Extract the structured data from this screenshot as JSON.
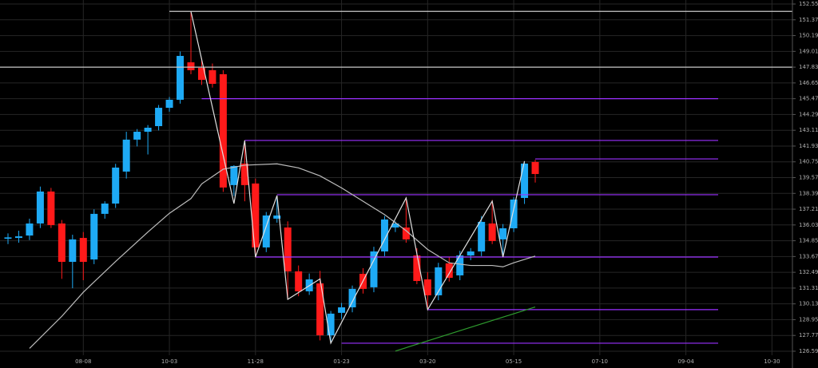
{
  "chart_data": {
    "type": "candlestick",
    "categories": [
      null,
      null,
      null,
      null,
      null,
      null,
      null,
      "08-08",
      null,
      null,
      null,
      null,
      null,
      null,
      null,
      "10-03",
      null,
      null,
      null,
      null,
      null,
      null,
      null,
      "11-28",
      null,
      null,
      null,
      null,
      null,
      null,
      null,
      "01-23",
      null,
      null,
      null,
      null,
      null,
      null,
      null,
      "03-20",
      null,
      null,
      null,
      null,
      null,
      null,
      null,
      "05-15",
      null,
      null,
      null,
      null,
      null,
      null,
      null,
      "07-10",
      null,
      null,
      null,
      null,
      null,
      null,
      null,
      "09-04",
      null,
      null,
      null,
      null,
      null,
      null,
      null,
      "10-30",
      null
    ],
    "open": [
      135.0,
      135.06,
      135.24,
      136.14,
      138.53,
      136.14,
      133.27,
      135.06,
      133.45,
      136.86,
      137.63,
      140.02,
      142.41,
      143.0,
      143.42,
      144.79,
      145.39,
      148.19,
      147.78,
      147.6,
      147.3,
      139.01,
      140.62,
      139.13,
      134.35,
      136.5,
      135.84,
      132.56,
      131.07,
      131.66,
      127.78,
      129.46,
      129.87,
      132.38,
      131.37,
      134.05,
      135.84,
      135.84,
      133.75,
      131.96,
      130.77,
      133.16,
      132.26,
      133.75,
      134.05,
      136.14,
      134.95,
      135.78,
      138.05,
      140.74,
      null,
      null,
      null,
      null,
      null,
      null,
      null,
      null,
      null,
      null,
      null,
      null,
      null,
      null,
      null,
      null,
      null,
      null,
      null,
      null,
      null,
      null,
      null
    ],
    "high": [
      135.4,
      135.6,
      136.5,
      138.9,
      138.8,
      136.4,
      135.3,
      135.5,
      137.2,
      137.8,
      140.6,
      143.0,
      143.2,
      143.5,
      145.0,
      145.6,
      149.0,
      152.0,
      148.5,
      148.1,
      147.6,
      140.5,
      142.35,
      139.5,
      137.0,
      138.2,
      136.3,
      133.0,
      132.4,
      132.6,
      129.6,
      130.2,
      131.5,
      132.8,
      134.4,
      136.7,
      136.3,
      138.0,
      134.3,
      132.5,
      133.2,
      133.6,
      134.1,
      134.3,
      136.7,
      137.9,
      136.1,
      138.1,
      140.8,
      140.9,
      null,
      null,
      null,
      null,
      null,
      null,
      null,
      null,
      null,
      null,
      null,
      null,
      null,
      null,
      null,
      null,
      null,
      null,
      null,
      null,
      null,
      null,
      null
    ],
    "low": [
      134.6,
      134.7,
      134.9,
      135.8,
      135.8,
      132.0,
      131.3,
      131.9,
      133.1,
      136.5,
      137.3,
      139.5,
      141.9,
      141.3,
      143.1,
      144.5,
      145.1,
      147.3,
      146.5,
      146.3,
      138.5,
      138.2,
      137.8,
      133.6,
      134.0,
      136.2,
      130.5,
      130.7,
      130.8,
      127.4,
      127.19,
      129.0,
      129.5,
      130.9,
      131.0,
      133.7,
      135.5,
      134.7,
      131.6,
      129.7,
      130.4,
      131.8,
      131.9,
      133.4,
      133.7,
      134.6,
      133.6,
      135.5,
      137.6,
      139.2,
      null,
      null,
      null,
      null,
      null,
      null,
      null,
      null,
      null,
      null,
      null,
      null,
      null,
      null,
      null,
      null,
      null,
      null,
      null,
      null,
      null,
      null,
      null
    ],
    "close": [
      135.1,
      135.18,
      136.14,
      138.53,
      136.02,
      133.27,
      134.95,
      133.27,
      136.86,
      137.63,
      140.32,
      142.41,
      143.0,
      143.3,
      144.79,
      145.39,
      148.67,
      147.6,
      146.88,
      146.58,
      138.83,
      140.44,
      139.01,
      134.35,
      136.74,
      136.74,
      132.56,
      131.07,
      131.96,
      127.78,
      129.4,
      129.87,
      131.25,
      131.25,
      134.05,
      136.44,
      136.14,
      134.95,
      131.84,
      130.77,
      132.86,
      132.08,
      133.75,
      134.05,
      136.26,
      134.83,
      135.78,
      137.93,
      140.62,
      139.84,
      null,
      null,
      null,
      null,
      null,
      null,
      null,
      null,
      null,
      null,
      null,
      null,
      null,
      null,
      null,
      null,
      null,
      null,
      null,
      null,
      null,
      null,
      null
    ],
    "up_color": "#1eaaf5",
    "down_color": "#ff1a1a",
    "ylim": [
      126.29,
      152.85
    ],
    "yticks": [
      152.55,
      151.37,
      150.19,
      149.01,
      147.83,
      146.65,
      145.47,
      144.29,
      143.11,
      141.93,
      140.75,
      139.57,
      138.39,
      137.21,
      136.03,
      134.85,
      133.67,
      132.49,
      131.31,
      130.13,
      128.95,
      127.77,
      126.59
    ],
    "grid": true,
    "overlays": [
      {
        "color": "#c8c8c8",
        "x": [
          15,
          73
        ],
        "values": [
          152.0,
          152.0
        ]
      },
      {
        "color": "#c8c8c8",
        "x": [
          -1,
          73
        ],
        "values": [
          147.83,
          147.83
        ]
      },
      {
        "color": "#9b30ff",
        "x": [
          18,
          66
        ],
        "values": [
          145.47,
          145.47
        ]
      },
      {
        "color": "#9b30ff",
        "x": [
          22,
          66
        ],
        "values": [
          142.35,
          142.35
        ]
      },
      {
        "color": "#9b30ff",
        "x": [
          49,
          66
        ],
        "values": [
          140.97,
          140.97
        ]
      },
      {
        "color": "#9b30ff",
        "x": [
          25,
          66
        ],
        "values": [
          138.29,
          138.29
        ]
      },
      {
        "color": "#9b30ff",
        "x": [
          23,
          66
        ],
        "values": [
          133.63,
          133.63
        ]
      },
      {
        "color": "#9b30ff",
        "x": [
          39,
          66
        ],
        "values": [
          129.7,
          129.7
        ]
      },
      {
        "color": "#9b30ff",
        "x": [
          31,
          66
        ],
        "values": [
          127.19,
          127.19
        ]
      },
      {
        "color": "#2e9b2e",
        "x": [
          36,
          49
        ],
        "values": [
          126.6,
          129.9
        ]
      },
      {
        "color": "#bdbdbd",
        "x": [
          2,
          5,
          7,
          10,
          13,
          15,
          17,
          18,
          20,
          22,
          25,
          27,
          29,
          31,
          33,
          35,
          37,
          39,
          41,
          43,
          45,
          46,
          47,
          49
        ],
        "values": [
          126.8,
          129.2,
          131.0,
          133.3,
          135.5,
          136.9,
          138.0,
          139.1,
          140.2,
          140.5,
          140.6,
          140.3,
          139.7,
          138.8,
          137.8,
          136.8,
          135.6,
          134.2,
          133.2,
          133.0,
          133.0,
          132.9,
          133.2,
          133.7
        ]
      },
      {
        "color": "#e0e0e0",
        "x": [
          17,
          21,
          22,
          23,
          25,
          26,
          29,
          30,
          37,
          39,
          45,
          46,
          48
        ],
        "values": [
          152.0,
          137.63,
          142.35,
          133.63,
          138.23,
          130.47,
          132.0,
          127.19,
          138.05,
          129.7,
          137.81,
          133.63,
          140.8
        ]
      }
    ]
  }
}
